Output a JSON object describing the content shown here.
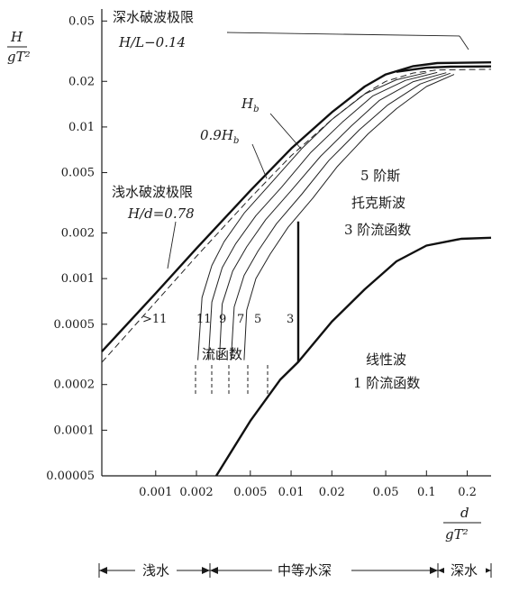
{
  "chart_data": {
    "type": "line",
    "log_x": true,
    "log_y": true,
    "xlim": [
      0.0004,
      0.3
    ],
    "ylim": [
      5e-05,
      0.06
    ],
    "ylabel": {
      "numerator": "H",
      "denominator": "gT²"
    },
    "xlabel": {
      "numerator": "d",
      "denominator": "gT²"
    },
    "x_ticks": [
      {
        "v": 0.001,
        "label": "0.001"
      },
      {
        "v": 0.002,
        "label": "0.002"
      },
      {
        "v": 0.005,
        "label": "0.005"
      },
      {
        "v": 0.01,
        "label": "0.01"
      },
      {
        "v": 0.02,
        "label": "0.02"
      },
      {
        "v": 0.05,
        "label": "0.05"
      },
      {
        "v": 0.1,
        "label": "0.1"
      },
      {
        "v": 0.2,
        "label": "0.2"
      }
    ],
    "y_ticks": [
      {
        "v": 0.05,
        "label": "0.05"
      },
      {
        "v": 0.02,
        "label": "0.02"
      },
      {
        "v": 0.01,
        "label": "0.01"
      },
      {
        "v": 0.005,
        "label": "0.005"
      },
      {
        "v": 0.002,
        "label": "0.002"
      },
      {
        "v": 0.001,
        "label": "0.001"
      },
      {
        "v": 0.0005,
        "label": "0.0005"
      },
      {
        "v": 0.0002,
        "label": "0.0002"
      },
      {
        "v": 0.0001,
        "label": "0.0001"
      },
      {
        "v": 5e-05,
        "label": "0.00005"
      }
    ],
    "series": [
      {
        "style": "heavy",
        "points": [
          [
            0.0004,
            0.00033
          ],
          [
            0.001,
            0.0008
          ],
          [
            0.002,
            0.00158
          ],
          [
            0.005,
            0.0038
          ],
          [
            0.01,
            0.0072
          ],
          [
            0.02,
            0.0125
          ],
          [
            0.035,
            0.0185
          ],
          [
            0.05,
            0.0222
          ],
          [
            0.08,
            0.0252
          ],
          [
            0.12,
            0.0264
          ],
          [
            0.3,
            0.0267
          ]
        ]
      },
      {
        "style": "dash",
        "points": [
          [
            0.0004,
            0.00028
          ],
          [
            0.001,
            0.0007
          ],
          [
            0.002,
            0.0014
          ],
          [
            0.005,
            0.0034
          ],
          [
            0.01,
            0.00645
          ],
          [
            0.02,
            0.0112
          ],
          [
            0.035,
            0.0166
          ],
          [
            0.05,
            0.02
          ],
          [
            0.08,
            0.0227
          ],
          [
            0.12,
            0.0238
          ],
          [
            0.3,
            0.024
          ]
        ]
      },
      {
        "style": "light",
        "points": [
          [
            0.00205,
            0.00029
          ],
          [
            0.0022,
            0.00075
          ],
          [
            0.0026,
            0.00122
          ],
          [
            0.0032,
            0.00175
          ],
          [
            0.0045,
            0.0027
          ],
          [
            0.007,
            0.0042
          ],
          [
            0.012,
            0.0072
          ],
          [
            0.02,
            0.0112
          ],
          [
            0.035,
            0.0165
          ],
          [
            0.06,
            0.0205
          ],
          [
            0.1,
            0.0228
          ]
        ]
      },
      {
        "style": "light",
        "points": [
          [
            0.00245,
            0.00029
          ],
          [
            0.0026,
            0.0007
          ],
          [
            0.0031,
            0.00118
          ],
          [
            0.0039,
            0.0017
          ],
          [
            0.0055,
            0.0026
          ],
          [
            0.0085,
            0.004
          ],
          [
            0.014,
            0.0068
          ],
          [
            0.024,
            0.0108
          ],
          [
            0.04,
            0.016
          ],
          [
            0.07,
            0.0203
          ],
          [
            0.12,
            0.0229
          ]
        ]
      },
      {
        "style": "light",
        "points": [
          [
            0.00295,
            0.00029
          ],
          [
            0.0031,
            0.00068
          ],
          [
            0.0037,
            0.00112
          ],
          [
            0.0047,
            0.00162
          ],
          [
            0.0065,
            0.00245
          ],
          [
            0.01,
            0.0038
          ],
          [
            0.0165,
            0.0064
          ],
          [
            0.028,
            0.0102
          ],
          [
            0.045,
            0.015
          ],
          [
            0.08,
            0.0199
          ],
          [
            0.14,
            0.0228
          ]
        ]
      },
      {
        "style": "light",
        "points": [
          [
            0.0036,
            0.00029
          ],
          [
            0.0038,
            0.00065
          ],
          [
            0.0045,
            0.00105
          ],
          [
            0.0057,
            0.00152
          ],
          [
            0.0078,
            0.0023
          ],
          [
            0.012,
            0.0036
          ],
          [
            0.019,
            0.006
          ],
          [
            0.032,
            0.0096
          ],
          [
            0.052,
            0.014
          ],
          [
            0.09,
            0.0192
          ],
          [
            0.15,
            0.0226
          ]
        ]
      },
      {
        "style": "light",
        "points": [
          [
            0.0045,
            0.00029
          ],
          [
            0.0047,
            0.00062
          ],
          [
            0.0055,
            0.001
          ],
          [
            0.007,
            0.00145
          ],
          [
            0.0095,
            0.00218
          ],
          [
            0.0145,
            0.0034
          ],
          [
            0.022,
            0.0055
          ],
          [
            0.037,
            0.009
          ],
          [
            0.06,
            0.0132
          ],
          [
            0.1,
            0.0185
          ],
          [
            0.16,
            0.0222
          ]
        ]
      },
      {
        "style": "heavy",
        "points": [
          [
            0.0028,
            5e-05
          ],
          [
            0.005,
            0.000115
          ],
          [
            0.0083,
            0.000215
          ],
          [
            0.0113,
            0.000282
          ],
          [
            0.02,
            0.00052
          ],
          [
            0.035,
            0.00085
          ],
          [
            0.06,
            0.0013
          ],
          [
            0.1,
            0.00165
          ],
          [
            0.18,
            0.00183
          ],
          [
            0.3,
            0.00186
          ]
        ]
      },
      {
        "style": "heavy",
        "points": [
          [
            0.0113,
            0.000282
          ],
          [
            0.0113,
            0.00238
          ]
        ]
      },
      {
        "style": "heavy",
        "points": [
          [
            0.06,
            0.0231
          ],
          [
            0.1,
            0.0246
          ],
          [
            0.15,
            0.025
          ],
          [
            0.3,
            0.0251
          ]
        ]
      }
    ],
    "annotations": [
      {
        "id": "deep-limit-title",
        "text": "深水破波极限"
      },
      {
        "id": "deep-limit-formula",
        "text": "H/L−0.14"
      },
      {
        "id": "shallow-limit-title",
        "text": "浅水破波极限"
      },
      {
        "id": "shallow-limit-formula",
        "text": "H/d=0.78"
      },
      {
        "id": "hb",
        "text": "H",
        "sub": "b"
      },
      {
        "id": "hb09",
        "text": "0.9H",
        "sub": "b"
      },
      {
        "id": "stokes-1",
        "text": "5 阶斯"
      },
      {
        "id": "stokes-2",
        "text": "托克斯波"
      },
      {
        "id": "stokes-3",
        "text": "3 阶流函数"
      },
      {
        "id": "linear-1",
        "text": "线性波"
      },
      {
        "id": "linear-2",
        "text": "1 阶流函数"
      },
      {
        "id": "stream-fn",
        "text": "流函数"
      },
      {
        "id": "order-gt11",
        "text": ">11"
      },
      {
        "id": "order-11",
        "text": "11"
      },
      {
        "id": "order-9",
        "text": "9"
      },
      {
        "id": "order-7",
        "text": "7"
      },
      {
        "id": "order-5",
        "text": "5"
      },
      {
        "id": "order-3",
        "text": "3"
      }
    ],
    "depth_zones": [
      "浅水",
      "中等水深",
      "深水"
    ]
  }
}
